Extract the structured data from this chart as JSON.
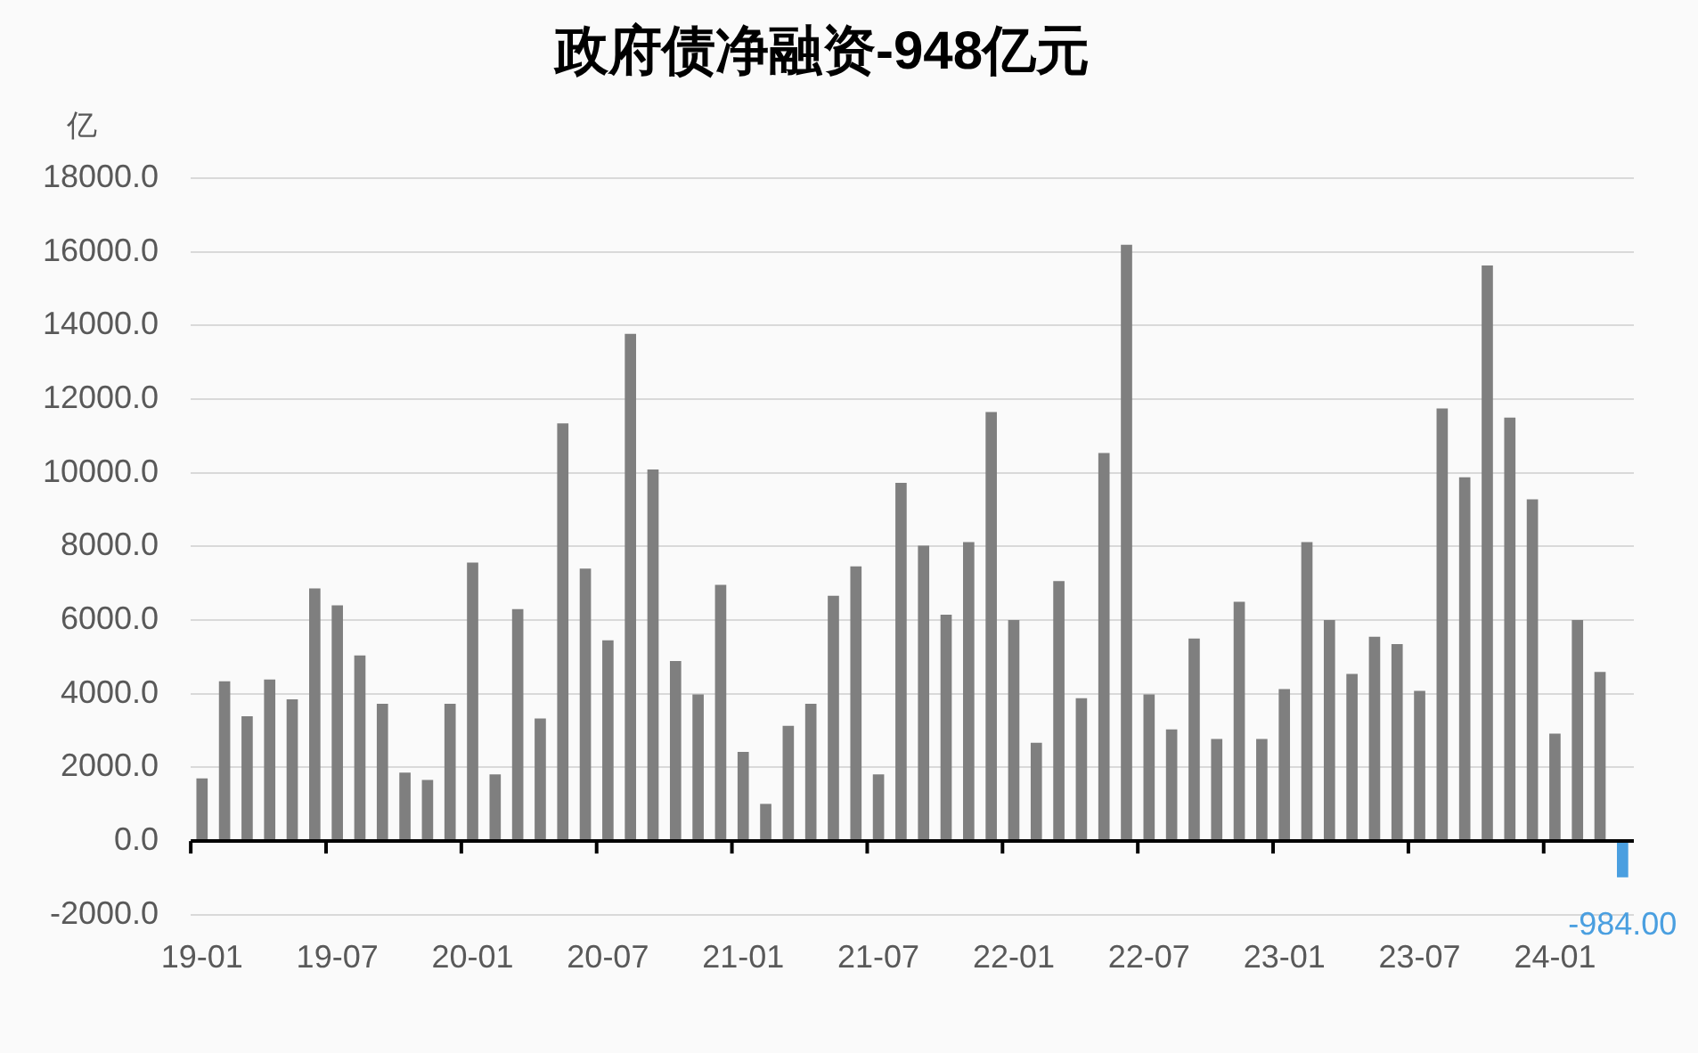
{
  "chart_data": {
    "type": "bar",
    "title": "政府债净融资-948亿元",
    "ylabel": "亿",
    "categories": [
      "19-01",
      null,
      null,
      null,
      null,
      null,
      "19-07",
      null,
      null,
      null,
      null,
      null,
      "20-01",
      null,
      null,
      null,
      null,
      null,
      "20-07",
      null,
      null,
      null,
      null,
      null,
      "21-01",
      null,
      null,
      null,
      null,
      null,
      "21-07",
      null,
      null,
      null,
      null,
      null,
      "22-01",
      null,
      null,
      null,
      null,
      null,
      "22-07",
      null,
      null,
      null,
      null,
      null,
      "23-01",
      null,
      null,
      null,
      null,
      null,
      "23-07",
      null,
      null,
      null,
      null,
      null,
      "24-01",
      null,
      null,
      null
    ],
    "values": [
      1700,
      4340,
      3390,
      4390,
      3850,
      6860,
      6400,
      5040,
      3730,
      1860,
      1660,
      3730,
      7560,
      1810,
      6300,
      3330,
      11340,
      7400,
      5450,
      13770,
      10090,
      4890,
      3980,
      6960,
      2420,
      1010,
      3130,
      3730,
      6660,
      7460,
      1810,
      9730,
      8020,
      6150,
      8120,
      11650,
      6000,
      2670,
      7060,
      3880,
      10540,
      16190,
      3980,
      3030,
      5500,
      2770,
      6500,
      2770,
      4130,
      8120,
      6000,
      4540,
      5550,
      5350,
      4080,
      11750,
      9880,
      15630,
      11500,
      9280,
      2920,
      6000,
      4590,
      -984
    ],
    "colors": [
      "#7f7f7f",
      "#7f7f7f",
      "#7f7f7f",
      "#7f7f7f",
      "#7f7f7f",
      "#7f7f7f",
      "#7f7f7f",
      "#7f7f7f",
      "#7f7f7f",
      "#7f7f7f",
      "#7f7f7f",
      "#7f7f7f",
      "#7f7f7f",
      "#7f7f7f",
      "#7f7f7f",
      "#7f7f7f",
      "#7f7f7f",
      "#7f7f7f",
      "#7f7f7f",
      "#7f7f7f",
      "#7f7f7f",
      "#7f7f7f",
      "#7f7f7f",
      "#7f7f7f",
      "#7f7f7f",
      "#7f7f7f",
      "#7f7f7f",
      "#7f7f7f",
      "#7f7f7f",
      "#7f7f7f",
      "#7f7f7f",
      "#7f7f7f",
      "#7f7f7f",
      "#7f7f7f",
      "#7f7f7f",
      "#7f7f7f",
      "#7f7f7f",
      "#7f7f7f",
      "#7f7f7f",
      "#7f7f7f",
      "#7f7f7f",
      "#7f7f7f",
      "#7f7f7f",
      "#7f7f7f",
      "#7f7f7f",
      "#7f7f7f",
      "#7f7f7f",
      "#7f7f7f",
      "#7f7f7f",
      "#7f7f7f",
      "#7f7f7f",
      "#7f7f7f",
      "#7f7f7f",
      "#7f7f7f",
      "#7f7f7f",
      "#7f7f7f",
      "#7f7f7f",
      "#7f7f7f",
      "#7f7f7f",
      "#7f7f7f",
      "#7f7f7f",
      "#7f7f7f",
      "#7f7f7f",
      "#4a9fe0"
    ],
    "value_labels": [
      null,
      null,
      null,
      null,
      null,
      null,
      null,
      null,
      null,
      null,
      null,
      null,
      null,
      null,
      null,
      null,
      null,
      null,
      null,
      null,
      null,
      null,
      null,
      null,
      null,
      null,
      null,
      null,
      null,
      null,
      null,
      null,
      null,
      null,
      null,
      null,
      null,
      null,
      null,
      null,
      null,
      null,
      null,
      null,
      null,
      null,
      null,
      null,
      null,
      null,
      null,
      null,
      null,
      null,
      null,
      null,
      null,
      null,
      null,
      null,
      null,
      null,
      null,
      "-984.00"
    ],
    "ylim": [
      -2000,
      18000
    ],
    "yticks": [
      {
        "value": -2000,
        "label": "-2000.0"
      },
      {
        "value": 0,
        "label": "0.0"
      },
      {
        "value": 2000,
        "label": "2000.0"
      },
      {
        "value": 4000,
        "label": "4000.0"
      },
      {
        "value": 6000,
        "label": "6000.0"
      },
      {
        "value": 8000,
        "label": "8000.0"
      },
      {
        "value": 10000,
        "label": "10000.0"
      },
      {
        "value": 12000,
        "label": "12000.0"
      },
      {
        "value": 14000,
        "label": "14000.0"
      },
      {
        "value": 16000,
        "label": "16000.0"
      },
      {
        "value": 18000,
        "label": "18000.0"
      }
    ],
    "grid": "y",
    "legend": false
  }
}
